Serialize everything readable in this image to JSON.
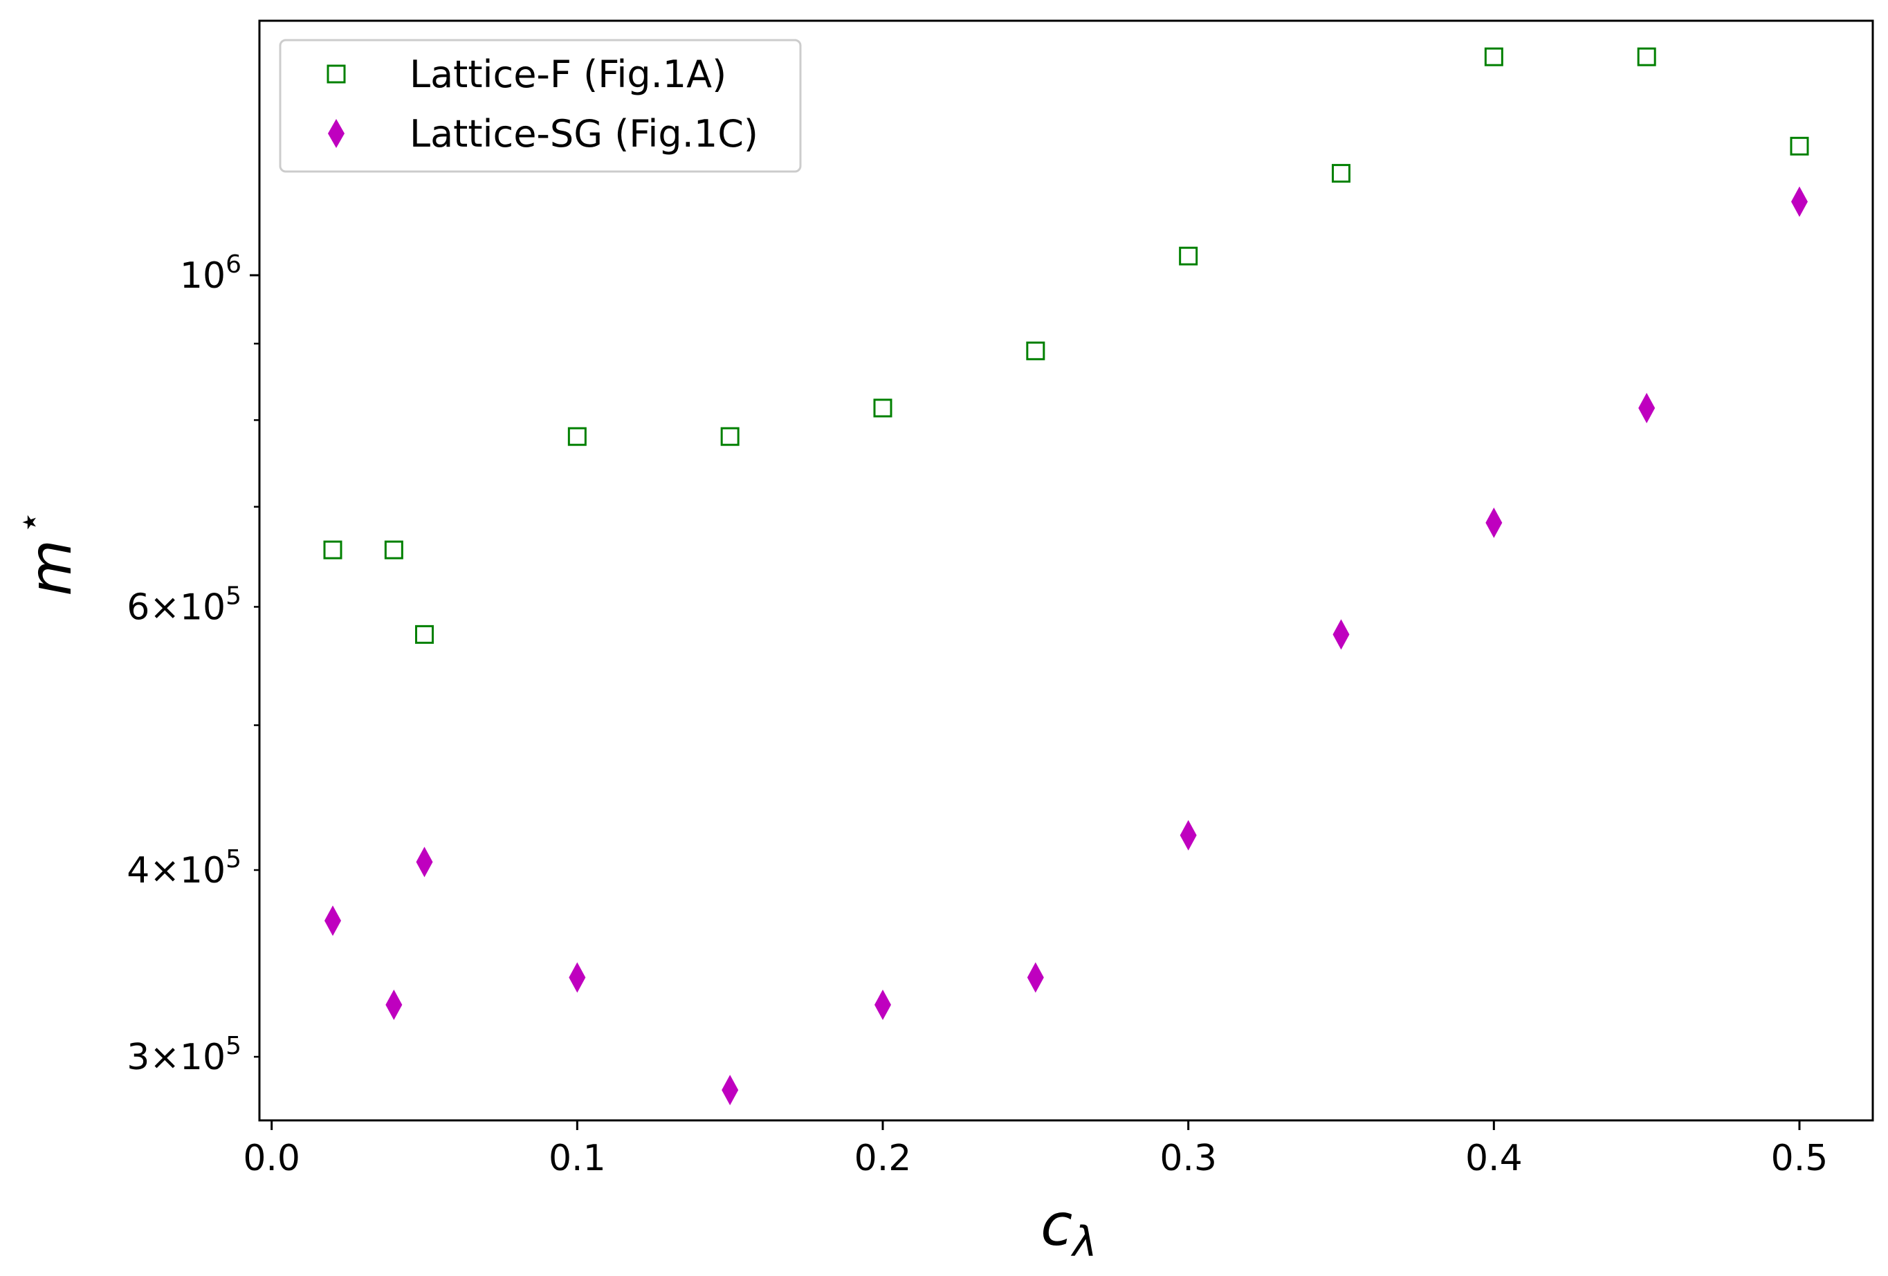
{
  "chart_data": {
    "type": "scatter",
    "xlabel": "c",
    "xlabel_sub": "λ",
    "ylabel": "m",
    "ylabel_sup": "⋆",
    "yscale": "log",
    "xlim": [
      -0.004,
      0.524
    ],
    "ylim": [
      272000,
      1480000
    ],
    "x_ticks": [
      {
        "value": 0.0,
        "label": "0.0"
      },
      {
        "value": 0.1,
        "label": "0.1"
      },
      {
        "value": 0.2,
        "label": "0.2"
      },
      {
        "value": 0.3,
        "label": "0.3"
      },
      {
        "value": 0.4,
        "label": "0.4"
      },
      {
        "value": 0.5,
        "label": "0.5"
      }
    ],
    "y_major_ticks": [
      {
        "value": 1000000,
        "mant": "",
        "exp": "6"
      }
    ],
    "y_minor_ticks": [
      {
        "value": 300000,
        "mant": "3",
        "exp": "5"
      },
      {
        "value": 400000,
        "mant": "4",
        "exp": "5"
      },
      {
        "value": 500000,
        "mant": "",
        "exp": ""
      },
      {
        "value": 600000,
        "mant": "6",
        "exp": "5"
      },
      {
        "value": 700000,
        "mant": "",
        "exp": ""
      },
      {
        "value": 800000,
        "mant": "",
        "exp": ""
      },
      {
        "value": 900000,
        "mant": "",
        "exp": ""
      }
    ],
    "legend_position": "upper-left",
    "series": [
      {
        "name": "Lattice-F (Fig.1A)",
        "marker": "open-square",
        "color": "#008000",
        "points": [
          {
            "x": 0.02,
            "y": 655000
          },
          {
            "x": 0.04,
            "y": 655000
          },
          {
            "x": 0.05,
            "y": 575000
          },
          {
            "x": 0.1,
            "y": 780000
          },
          {
            "x": 0.15,
            "y": 780000
          },
          {
            "x": 0.2,
            "y": 815000
          },
          {
            "x": 0.25,
            "y": 890000
          },
          {
            "x": 0.3,
            "y": 1030000
          },
          {
            "x": 0.35,
            "y": 1170000
          },
          {
            "x": 0.4,
            "y": 1400000
          },
          {
            "x": 0.45,
            "y": 1400000
          },
          {
            "x": 0.5,
            "y": 1220000
          }
        ]
      },
      {
        "name": "Lattice-SG (Fig.1C)",
        "marker": "filled-thin-diamond",
        "color": "#bf00bf",
        "points": [
          {
            "x": 0.02,
            "y": 370000
          },
          {
            "x": 0.04,
            "y": 325000
          },
          {
            "x": 0.05,
            "y": 405000
          },
          {
            "x": 0.1,
            "y": 339000
          },
          {
            "x": 0.15,
            "y": 285000
          },
          {
            "x": 0.2,
            "y": 325000
          },
          {
            "x": 0.25,
            "y": 339000
          },
          {
            "x": 0.3,
            "y": 422000
          },
          {
            "x": 0.35,
            "y": 575000
          },
          {
            "x": 0.4,
            "y": 683000
          },
          {
            "x": 0.45,
            "y": 815000
          },
          {
            "x": 0.5,
            "y": 1120000
          }
        ]
      }
    ]
  }
}
